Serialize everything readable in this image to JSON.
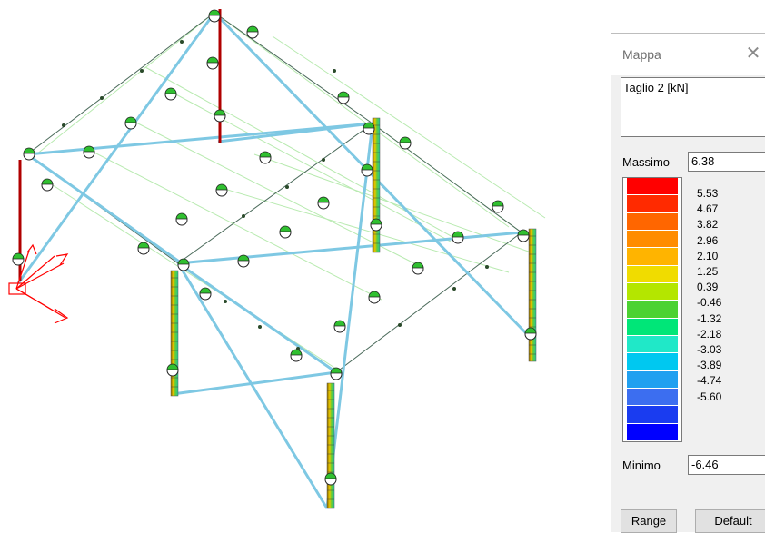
{
  "dialog": {
    "title": "Mappa",
    "quantity": "Taglio 2 [kN]",
    "max_label": "Massimo",
    "max_value": "6.38",
    "min_label": "Minimo",
    "min_value": "-6.46",
    "range_button": "Range",
    "default_button": "Default"
  },
  "legend": {
    "labels": [
      "5.53",
      "4.67",
      "3.82",
      "2.96",
      "2.10",
      "1.25",
      "0.39",
      "-0.46",
      "-1.32",
      "-2.18",
      "-3.03",
      "-3.89",
      "-4.74",
      "-5.60"
    ],
    "colors": [
      "#ff0000",
      "#ff2a00",
      "#ff6600",
      "#ff8c00",
      "#ffb400",
      "#f0dc00",
      "#b4e600",
      "#4cd232",
      "#00e678",
      "#20e8c8",
      "#00c8f0",
      "#20a0f0",
      "#3c6ef0",
      "#1a3cf0",
      "#0000ff"
    ]
  },
  "model": {
    "colors": {
      "beam": "#7ec8e3",
      "secondary": "#b8eab0",
      "dark_beam": "#4a6a5a",
      "column_red": "#b00000",
      "axis": "#ff0000"
    }
  }
}
